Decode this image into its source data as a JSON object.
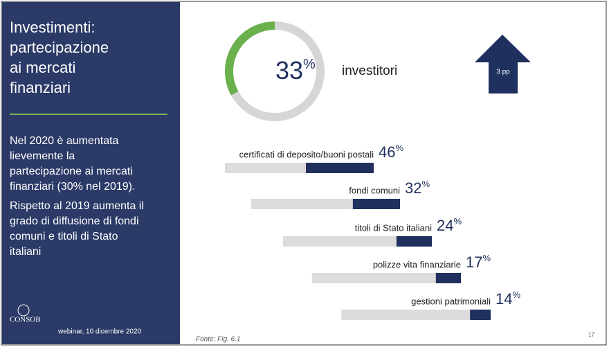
{
  "sidebar": {
    "title": [
      "Investimenti:",
      "partecipazione",
      "ai mercati",
      "finanziari"
    ],
    "body": [
      [
        "Nel 2020 è aumentata",
        "lievemente la",
        "partecipazione ai mercati",
        "finanziari (30% nel 2019)."
      ],
      [
        "Rispetto al 2019 aumenta il",
        "grado di diffusione di fondi",
        "comuni e titoli di Stato",
        "italiani"
      ]
    ],
    "logo": "CONSOB",
    "footer": "webinar, 10 dicembre 2020"
  },
  "donut": {
    "value": 33,
    "unit": "%",
    "label": "investitori",
    "change": "3 pp"
  },
  "bars": {
    "categories": [
      "certificati di deposito/buoni postali",
      "fondi comuni",
      "titoli di Stato italiani",
      "polizze vita finanziarie",
      "gestioni patrimoniali"
    ],
    "values": [
      46,
      32,
      24,
      17,
      14
    ],
    "unit": "%",
    "color": "#1f2f5e",
    "track_color": "#dcdcdc"
  },
  "source": "Fonte: Fig. 6.1",
  "page_number": "17"
}
